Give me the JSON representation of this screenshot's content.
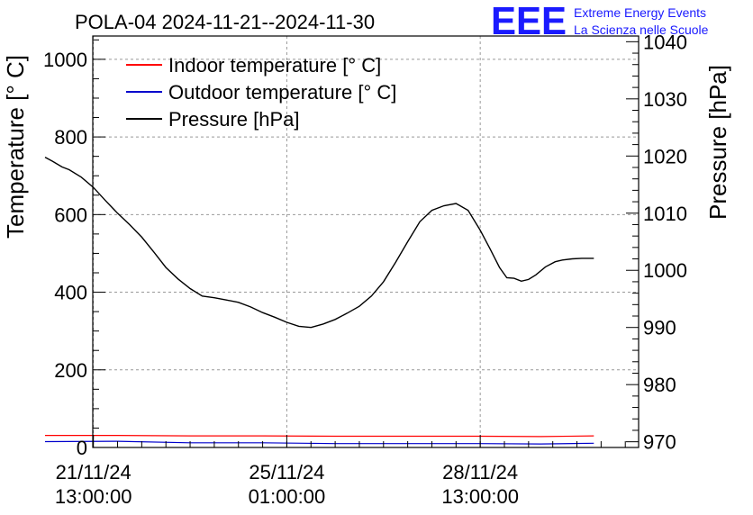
{
  "title": "POLA-04 2024-11-21--2024-11-30",
  "logo": {
    "mark": "EEE",
    "line1": "Extreme Energy Events",
    "line2": "La Scienza nelle Scuole",
    "color": "#1a1aff"
  },
  "chart_data": {
    "type": "line",
    "xlabel": "",
    "ylabel": "Temperature [° C]",
    "ylabel_right": "Pressure [hPa]",
    "ylim": [
      0,
      1060
    ],
    "ylim_right": [
      969,
      1041
    ],
    "xlim_hours": [
      0,
      228
    ],
    "grid": true,
    "legend_position": "top-left",
    "yticks": [
      {
        "value": 0,
        "label": "0"
      },
      {
        "value": 200,
        "label": "200"
      },
      {
        "value": 400,
        "label": "400"
      },
      {
        "value": 600,
        "label": "600"
      },
      {
        "value": 800,
        "label": "800"
      },
      {
        "value": 1000,
        "label": "1000"
      }
    ],
    "yticks_right": [
      {
        "value": 970,
        "label": "970"
      },
      {
        "value": 980,
        "label": "980"
      },
      {
        "value": 990,
        "label": "990"
      },
      {
        "value": 1000,
        "label": "1000"
      },
      {
        "value": 1010,
        "label": "1010"
      },
      {
        "value": 1020,
        "label": "1020"
      },
      {
        "value": 1030,
        "label": "1030"
      },
      {
        "value": 1040,
        "label": "1040"
      }
    ],
    "xticks": [
      {
        "hour": 20,
        "line1": "21/11/24",
        "line2": "13:00:00"
      },
      {
        "hour": 100,
        "line1": "25/11/24",
        "line2": "01:00:00"
      },
      {
        "hour": 180,
        "line1": "28/11/24",
        "line2": "13:00:00"
      }
    ],
    "series": [
      {
        "name": "Indoor temperature [° C]",
        "color": "#ff0000",
        "axis": "left",
        "x": [
          0,
          30,
          60,
          90,
          120,
          150,
          180,
          205,
          227
        ],
        "y": [
          31,
          31,
          30,
          30,
          29,
          29,
          29,
          28,
          30
        ]
      },
      {
        "name": "Outdoor temperature [° C]",
        "color": "#0000cc",
        "axis": "left",
        "x": [
          0,
          30,
          60,
          90,
          120,
          150,
          180,
          205,
          227
        ],
        "y": [
          15,
          16,
          12,
          12,
          10,
          10,
          10,
          9,
          11
        ]
      },
      {
        "name": "Pressure [hPa]",
        "color": "#000000",
        "axis": "right",
        "x": [
          0,
          3,
          7,
          10,
          15,
          20,
          25,
          30,
          35,
          40,
          45,
          50,
          55,
          60,
          65,
          70,
          75,
          80,
          85,
          90,
          95,
          100,
          105,
          110,
          115,
          120,
          125,
          130,
          135,
          140,
          145,
          150,
          155,
          160,
          165,
          170,
          175,
          180,
          184,
          188,
          191,
          194,
          197,
          200,
          203,
          207,
          211,
          214,
          218,
          222,
          227
        ],
        "y": [
          1019.8,
          1019.1,
          1018.1,
          1017.6,
          1016.3,
          1014.5,
          1012.2,
          1010.0,
          1008.0,
          1005.8,
          1003.2,
          1000.5,
          998.5,
          996.8,
          995.5,
          995.2,
          994.8,
          994.4,
          993.6,
          992.6,
          991.8,
          990.9,
          990.2,
          990.0,
          990.6,
          991.4,
          992.5,
          993.7,
          995.5,
          998.0,
          1001.4,
          1005.0,
          1008.5,
          1010.5,
          1011.3,
          1011.7,
          1010.5,
          1007.0,
          1003.8,
          1000.5,
          998.7,
          998.6,
          998.1,
          998.4,
          999.2,
          1000.6,
          1001.5,
          1001.8,
          1002.0,
          1002.1,
          1002.1
        ]
      }
    ]
  }
}
